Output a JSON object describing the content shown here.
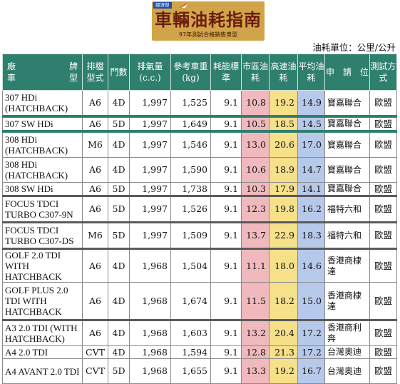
{
  "logo": {
    "agency": "經濟部",
    "title": "車輛油耗指南",
    "subtitle": "97年測試合格銷售車型"
  },
  "unit_label": "油耗單位：公里/公升",
  "columns": {
    "manufacturer": "廠",
    "brand": "牌",
    "vehicle": "車",
    "model": "型",
    "transmission": "排檔型式",
    "doors": "門數",
    "displacement": "排氣量(c.c.)",
    "weight": "參考車重(kg)",
    "efficiency_standard": "耗能標準",
    "urban": "市區油耗",
    "highway": "高速油耗",
    "average": "平均油耗",
    "applicant": "申　請　位",
    "test_method": "測試方式"
  },
  "colors": {
    "header_bg": "#2f7f6e",
    "urban": "#f0b9bd",
    "highway": "#f6e08a",
    "average": "#b6c9ea"
  },
  "rows": [
    {
      "model": "307 HDi (HATCHBACK)",
      "transmission": "A6",
      "doors": "4D",
      "displacement": "1,997",
      "weight": "1,525",
      "standard": "9.1",
      "urban": "10.8",
      "highway": "19.2",
      "average": "14.9",
      "applicant": "寶嘉聯合",
      "test": "歐盟"
    },
    {
      "model": "307 SW HDi",
      "transmission": "A6",
      "doors": "5D",
      "displacement": "1,997",
      "weight": "1,649",
      "standard": "9.1",
      "urban": "10.5",
      "highway": "18.5",
      "average": "14.5",
      "applicant": "寶嘉聯合",
      "test": "歐盟"
    },
    {
      "model": "308 HDi (HATCHBACK)",
      "transmission": "M6",
      "doors": "4D",
      "displacement": "1,997",
      "weight": "1,546",
      "standard": "9.1",
      "urban": "13.0",
      "highway": "20.6",
      "average": "17.0",
      "applicant": "寶嘉聯合",
      "test": "歐盟"
    },
    {
      "model": "308 HDi (HATCHBACK)",
      "transmission": "A6",
      "doors": "4D",
      "displacement": "1,997",
      "weight": "1,590",
      "standard": "9.1",
      "urban": "10.6",
      "highway": "18.9",
      "average": "14.7",
      "applicant": "寶嘉聯合",
      "test": "歐盟"
    },
    {
      "model": "308 SW HDi",
      "transmission": "A6",
      "doors": "5D",
      "displacement": "1,997",
      "weight": "1,738",
      "standard": "9.1",
      "urban": "10.3",
      "highway": "17.9",
      "average": "14.1",
      "applicant": "寶嘉聯合",
      "test": "歐盟"
    },
    {
      "model": "FOCUS TDCI TURBO C307-9N",
      "transmission": "A6",
      "doors": "5D",
      "displacement": "1,997",
      "weight": "1,526",
      "standard": "9.1",
      "urban": "12.3",
      "highway": "19.8",
      "average": "16.2",
      "applicant": "福特六和",
      "test": "歐盟"
    },
    {
      "model": "FOCUS TDCI TURBO C307-DS",
      "transmission": "M6",
      "doors": "5D",
      "displacement": "1,997",
      "weight": "1,509",
      "standard": "9.1",
      "urban": "13.7",
      "highway": "22.9",
      "average": "18.3",
      "applicant": "福特六和",
      "test": "歐盟"
    },
    {
      "model": "GOLF 2.0 TDI WITH HATCHBACK",
      "transmission": "A6",
      "doors": "4D",
      "displacement": "1,968",
      "weight": "1,504",
      "standard": "9.1",
      "urban": "11.1",
      "highway": "18.0",
      "average": "14.6",
      "applicant": "香港商棣達",
      "test": "歐盟"
    },
    {
      "model": "GOLF PLUS 2.0 TDI WITH HATCHBACK",
      "transmission": "A6",
      "doors": "4D",
      "displacement": "1,968",
      "weight": "1,674",
      "standard": "9.1",
      "urban": "11.5",
      "highway": "18.2",
      "average": "15.0",
      "applicant": "香港商棣達",
      "test": "歐盟"
    },
    {
      "model": "A3 2.0 TDI (WITH HATCHBACK)",
      "transmission": "A6",
      "doors": "4D",
      "displacement": "1,968",
      "weight": "1,603",
      "standard": "9.1",
      "urban": "13.2",
      "highway": "20.4",
      "average": "17.2",
      "applicant": "香港商利奔",
      "test": "歐盟"
    },
    {
      "model": "A4 2.0 TDI",
      "transmission": "CVT",
      "doors": "4D",
      "displacement": "1,968",
      "weight": "1,594",
      "standard": "9.1",
      "urban": "12.8",
      "highway": "21.3",
      "average": "17.2",
      "applicant": "台灣奧迪",
      "test": "歐盟"
    },
    {
      "model": "A4 AVANT 2.0 TDI",
      "transmission": "CVT",
      "doors": "5D",
      "displacement": "1,968",
      "weight": "1,655",
      "standard": "9.1",
      "urban": "13.3",
      "highway": "19.2",
      "average": "16.7",
      "applicant": "台灣奧迪",
      "test": "歐盟"
    }
  ]
}
